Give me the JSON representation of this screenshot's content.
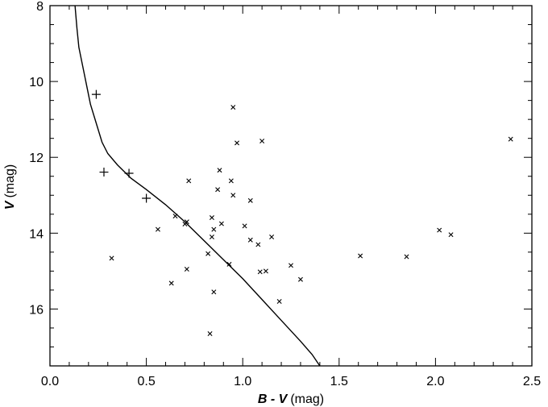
{
  "chart_data": {
    "type": "scatter",
    "title": "",
    "xlabel": {
      "symbol": "B - V",
      "unit": "(mag)"
    },
    "ylabel": {
      "symbol": "V",
      "unit": "(mag)"
    },
    "xlim": [
      0.0,
      2.5
    ],
    "ylim": [
      17.5,
      8.0
    ],
    "y_inverted": true,
    "grid": false,
    "x_ticks": {
      "major": [
        0.0,
        0.5,
        1.0,
        1.5,
        2.0,
        2.5
      ],
      "labels": [
        "0.0",
        "0.5",
        "1.0",
        "1.5",
        "2.0",
        "2.5"
      ],
      "minor_step": 0.1
    },
    "y_ticks": {
      "major": [
        8,
        10,
        12,
        14,
        16
      ],
      "labels": [
        "8",
        "10",
        "12",
        "14",
        "16"
      ],
      "minor_step": 0.5
    },
    "series": [
      {
        "marker": "plus",
        "points": [
          {
            "x": 0.24,
            "y": 10.34
          },
          {
            "x": 0.28,
            "y": 12.39
          },
          {
            "x": 0.41,
            "y": 12.42
          },
          {
            "x": 0.5,
            "y": 13.08
          }
        ]
      },
      {
        "marker": "x",
        "points": [
          {
            "x": 0.32,
            "y": 14.66
          },
          {
            "x": 0.56,
            "y": 13.9
          },
          {
            "x": 0.63,
            "y": 15.32
          },
          {
            "x": 0.65,
            "y": 13.55
          },
          {
            "x": 0.7,
            "y": 13.76
          },
          {
            "x": 0.71,
            "y": 13.7
          },
          {
            "x": 0.71,
            "y": 14.95
          },
          {
            "x": 0.72,
            "y": 12.62
          },
          {
            "x": 0.82,
            "y": 14.54
          },
          {
            "x": 0.83,
            "y": 16.65
          },
          {
            "x": 0.84,
            "y": 13.59
          },
          {
            "x": 0.84,
            "y": 14.1
          },
          {
            "x": 0.85,
            "y": 13.9
          },
          {
            "x": 0.85,
            "y": 15.55
          },
          {
            "x": 0.87,
            "y": 12.85
          },
          {
            "x": 0.88,
            "y": 12.34
          },
          {
            "x": 0.89,
            "y": 13.75
          },
          {
            "x": 0.93,
            "y": 14.82
          },
          {
            "x": 0.94,
            "y": 12.62
          },
          {
            "x": 0.95,
            "y": 13.0
          },
          {
            "x": 0.95,
            "y": 10.68
          },
          {
            "x": 0.97,
            "y": 11.62
          },
          {
            "x": 1.01,
            "y": 13.81
          },
          {
            "x": 1.04,
            "y": 14.18
          },
          {
            "x": 1.04,
            "y": 13.14
          },
          {
            "x": 1.08,
            "y": 14.3
          },
          {
            "x": 1.09,
            "y": 15.02
          },
          {
            "x": 1.1,
            "y": 11.57
          },
          {
            "x": 1.12,
            "y": 15.0
          },
          {
            "x": 1.15,
            "y": 14.1
          },
          {
            "x": 1.19,
            "y": 15.8
          },
          {
            "x": 1.25,
            "y": 14.85
          },
          {
            "x": 1.3,
            "y": 15.22
          },
          {
            "x": 1.61,
            "y": 14.6
          },
          {
            "x": 1.85,
            "y": 14.62
          },
          {
            "x": 2.02,
            "y": 13.92
          },
          {
            "x": 2.08,
            "y": 14.04
          },
          {
            "x": 2.39,
            "y": 11.52
          }
        ]
      },
      {
        "marker": "line",
        "points": [
          {
            "x": 0.13,
            "y": 8.0
          },
          {
            "x": 0.14,
            "y": 8.6
          },
          {
            "x": 0.15,
            "y": 9.1
          },
          {
            "x": 0.17,
            "y": 9.6
          },
          {
            "x": 0.19,
            "y": 10.1
          },
          {
            "x": 0.21,
            "y": 10.6
          },
          {
            "x": 0.24,
            "y": 11.1
          },
          {
            "x": 0.27,
            "y": 11.6
          },
          {
            "x": 0.3,
            "y": 11.9
          },
          {
            "x": 0.35,
            "y": 12.2
          },
          {
            "x": 0.42,
            "y": 12.55
          },
          {
            "x": 0.5,
            "y": 12.85
          },
          {
            "x": 0.6,
            "y": 13.25
          },
          {
            "x": 0.7,
            "y": 13.7
          },
          {
            "x": 0.8,
            "y": 14.2
          },
          {
            "x": 0.9,
            "y": 14.7
          },
          {
            "x": 1.0,
            "y": 15.2
          },
          {
            "x": 1.1,
            "y": 15.75
          },
          {
            "x": 1.2,
            "y": 16.3
          },
          {
            "x": 1.3,
            "y": 16.85
          },
          {
            "x": 1.36,
            "y": 17.2
          },
          {
            "x": 1.4,
            "y": 17.5
          }
        ]
      }
    ]
  }
}
